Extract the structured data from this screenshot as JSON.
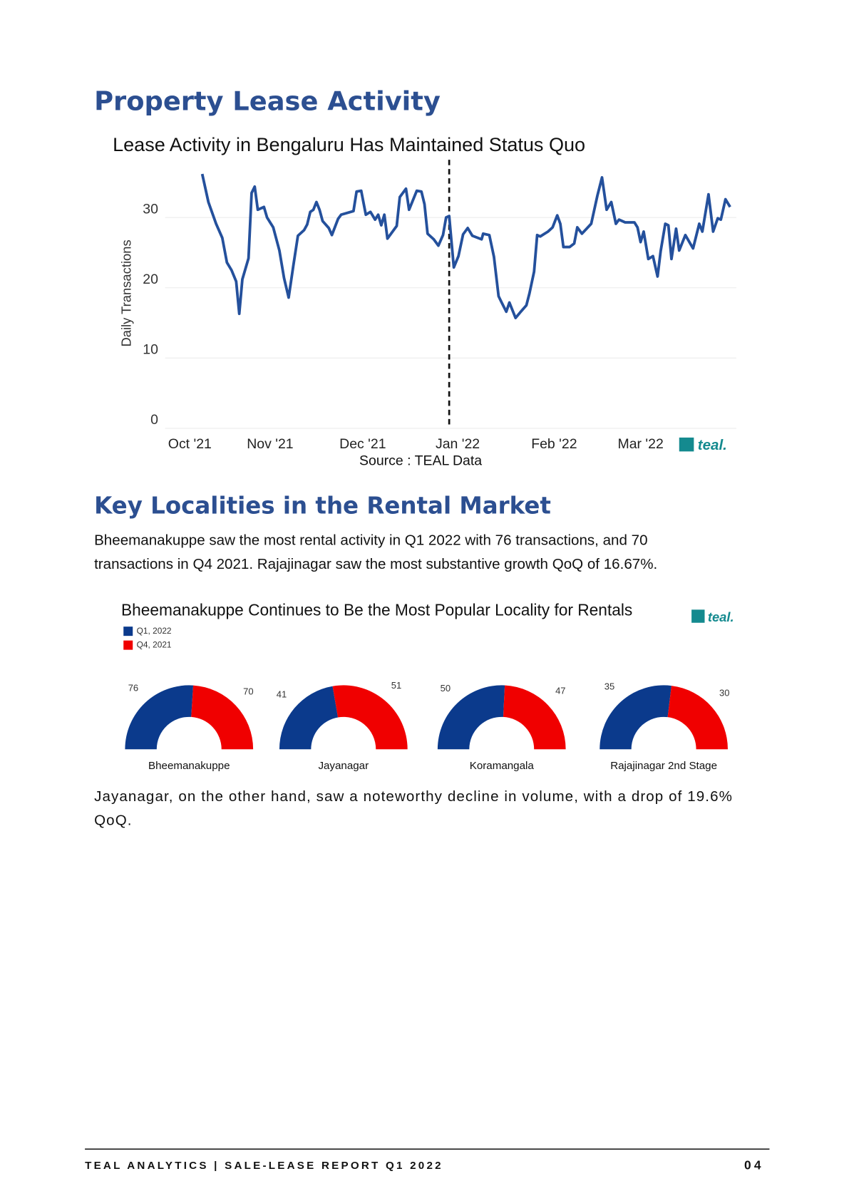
{
  "header": {
    "title": "Property Lease Activity"
  },
  "chart_data": [
    {
      "type": "line",
      "title": "Lease Activity in Bengaluru Has Maintained Status Quo",
      "y_label": "Daily Transactions",
      "color": "#24509c",
      "x": [
        0,
        2,
        4.5,
        6.5,
        8,
        9.5,
        11,
        12,
        13,
        15,
        16,
        17,
        18,
        20,
        21,
        23,
        25,
        26.5,
        28,
        29.5,
        31,
        33,
        34,
        35,
        36,
        37,
        38,
        39,
        41,
        42,
        44,
        45,
        49,
        50,
        51.5,
        53,
        54.5,
        56,
        57,
        58,
        59,
        60,
        63,
        64,
        66,
        67,
        69.5,
        71,
        72,
        73,
        75,
        76.5,
        78,
        79,
        80,
        81.5,
        83,
        84.5,
        86,
        87.5,
        90.5,
        91,
        93,
        94.5,
        96,
        97,
        98.5,
        99.5,
        101.5,
        103,
        105,
        106,
        107.5,
        108.5,
        109.5,
        112,
        113.5,
        115,
        116,
        117,
        119,
        120.5,
        121.5,
        123,
        124.5,
        126,
        128,
        129.5,
        131,
        132.5,
        134,
        135,
        137,
        140,
        141,
        142,
        143,
        144.5,
        146,
        147.5,
        148.5,
        150,
        151,
        152,
        153.5,
        154.5,
        156.5,
        159,
        161,
        162,
        164,
        165.5,
        167,
        168,
        169.5,
        171
      ],
      "values": [
        36.2,
        32.2,
        29.1,
        27.1,
        23.6,
        22.5,
        20.9,
        16.3,
        21.2,
        24.2,
        33.5,
        34.4,
        31.1,
        31.5,
        30,
        28.6,
        25.3,
        21.4,
        18.6,
        23.1,
        27.4,
        28.2,
        29,
        30.8,
        31.1,
        32.2,
        31.1,
        29.5,
        28.5,
        27.5,
        29.8,
        30.4,
        30.9,
        33.7,
        33.8,
        30.4,
        30.8,
        29.7,
        30.4,
        28.9,
        30.4,
        27,
        28.8,
        32.9,
        34.1,
        31.1,
        33.8,
        33.7,
        31.9,
        27.7,
        26.9,
        26,
        27.5,
        30,
        30.2,
        22.9,
        24.5,
        27.6,
        28.5,
        27.4,
        26.9,
        27.7,
        27.5,
        24.4,
        18.8,
        17.9,
        16.6,
        17.9,
        15.7,
        16.5,
        17.5,
        19.2,
        22.3,
        27.5,
        27.3,
        28,
        28.6,
        30.3,
        29.1,
        25.8,
        25.8,
        26.3,
        28.6,
        27.7,
        28.4,
        29.1,
        33.1,
        35.7,
        31.1,
        32.2,
        29.1,
        29.7,
        29.3,
        29.3,
        28.6,
        26.5,
        28,
        24.1,
        24.5,
        21.6,
        25.2,
        29.1,
        28.9,
        24.1,
        28.4,
        25.3,
        27.5,
        25.6,
        29.1,
        28,
        33.3,
        28,
        29.9,
        29.7,
        32.6,
        31.5
      ],
      "xlim": [
        -12,
        173
      ],
      "xticks": [
        {
          "value": -4,
          "label": "Oct '21"
        },
        {
          "value": 22,
          "label": "Nov '21"
        },
        {
          "value": 52,
          "label": "Dec '21"
        },
        {
          "value": 80,
          "label": "Jan '22"
        },
        {
          "value": 114,
          "label": "Feb '22"
        },
        {
          "value": 142,
          "label": "Mar '22"
        }
      ],
      "ylim": [
        0,
        38
      ],
      "yticks": [
        0,
        10,
        20,
        30
      ],
      "grid": true,
      "logo": "teal.",
      "source": "Source : TEAL Data"
    },
    {
      "type": "half-donut",
      "title": "Bheemanakuppe Continues to Be the Most Popular Locality for Rentals",
      "categories": [
        "Bheemanakuppe",
        "Jayanagar",
        "Koramangala",
        "Rajajinagar 2nd Stage"
      ],
      "series": [
        {
          "name": "Q1, 2022",
          "color": "#0b3a8c",
          "values": [
            76,
            41,
            50,
            35
          ]
        },
        {
          "name": "Q4, 2021",
          "color": "#f00000",
          "values": [
            70,
            51,
            47,
            30
          ]
        }
      ],
      "logo": "teal."
    }
  ],
  "section2": {
    "heading": "Key Localities in the Rental Market",
    "paragraph": "Bheemanakuppe saw the most rental activity in Q1 2022 with 76 transactions, and 70 transactions in Q4 2021. Rajajinagar saw the most substantive growth QoQ of 16.67%.",
    "paragraph2": "Jayanagar, on the other hand, saw a noteworthy decline in volume, with a drop of 19.6% QoQ."
  },
  "footer": {
    "text": "TEAL ANALYTICS | SALE-LEASE REPORT Q1 2022",
    "page": "04"
  }
}
